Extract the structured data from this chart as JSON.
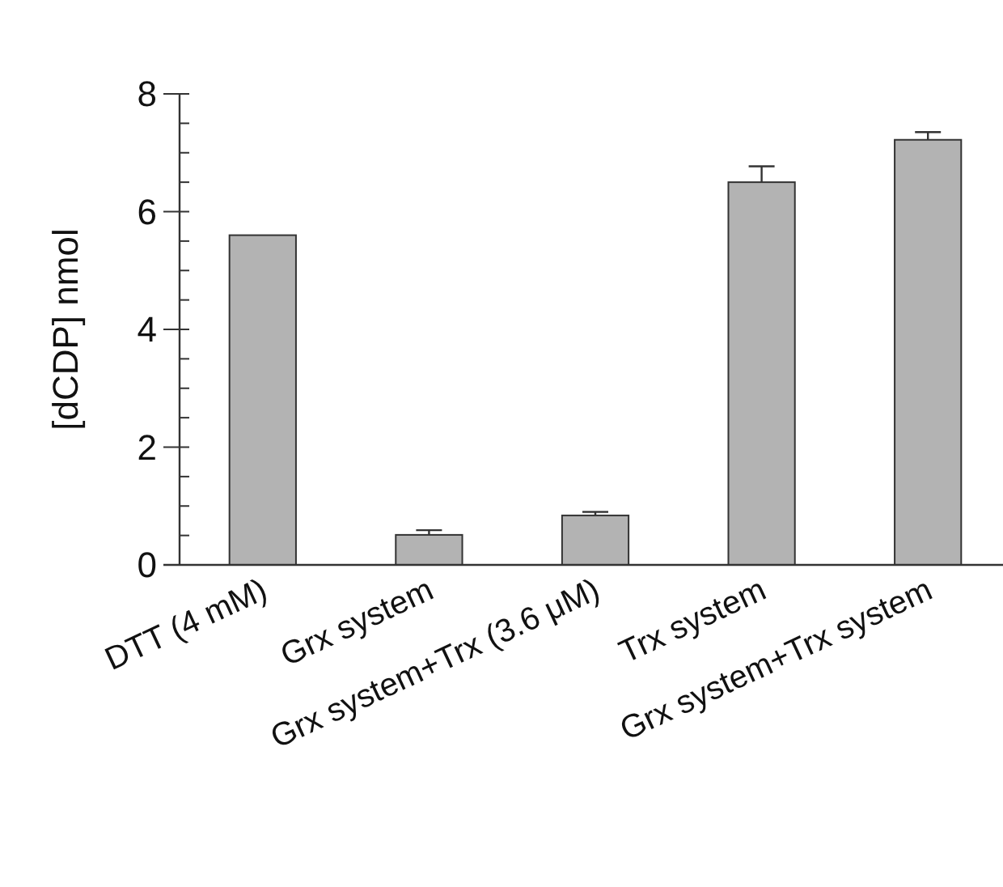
{
  "chart_data": {
    "type": "bar",
    "ylabel": "[dCDP] nmol",
    "categories": [
      "DTT (4 mM)",
      "Grx system",
      "Grx system+Trx (3.6 μM)",
      "Trx system",
      "Grx system+Trx system"
    ],
    "values": [
      5.6,
      0.51,
      0.84,
      6.5,
      7.22
    ],
    "errors": [
      null,
      0.08,
      0.06,
      0.27,
      0.13
    ],
    "color": "#b3b3b3",
    "ylim": [
      0,
      8
    ],
    "yticks": [
      0,
      {
        "value": 0.5,
        "label": null
      },
      {
        "value": 1,
        "label": null
      },
      {
        "value": 1.5,
        "label": null
      },
      2,
      {
        "value": 2.5,
        "label": null
      },
      {
        "value": 3,
        "label": null
      },
      {
        "value": 3.5,
        "label": null
      },
      4,
      {
        "value": 4.5,
        "label": null
      },
      {
        "value": 5,
        "label": null
      },
      {
        "value": 5.5,
        "label": null
      },
      6,
      {
        "value": 6.5,
        "label": null
      },
      {
        "value": 7,
        "label": null
      },
      {
        "value": 7.5,
        "label": null
      },
      8
    ],
    "grid": false
  }
}
